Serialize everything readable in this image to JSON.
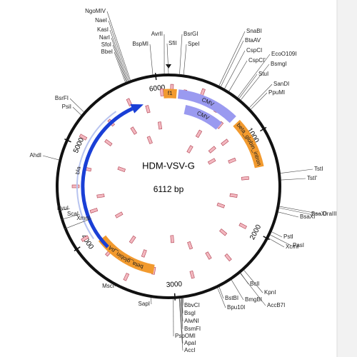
{
  "title": "HDM-VSV-G",
  "size_label": "6112 bp",
  "total_bp": 6112,
  "scale": [
    1000,
    2000,
    3000,
    4000,
    5000,
    6000
  ],
  "features": [
    {
      "label": "CMV"
    },
    {
      "label": "CMV"
    },
    {
      "label": "f1"
    },
    {
      "label": "beta_globin_intron"
    },
    {
      "label": "beta_globin_pA"
    },
    {
      "label": "bla"
    }
  ],
  "enzymes": [
    "NgoMIV",
    "NaeI",
    "KasI",
    "NarI",
    "SfoI",
    "BbeI",
    "BspMI",
    "AvrII",
    "SfiI",
    "BsrGI",
    "SpeI",
    "SnaBI",
    "BtaAV",
    "CspCI",
    "CspCI'",
    "EcoO109I",
    "BsmgI",
    "StuI",
    "SanDI",
    "PpuMI",
    "TstI",
    "TstI'",
    "DraIII",
    "BsaXI",
    "BsaXI'",
    "PstI",
    "XcmI",
    "PasI",
    "BclI",
    "KpnI",
    "AccB7I",
    "BmgBI",
    "BstBI",
    "Bpu10I",
    "BbvCI",
    "BsgI",
    "AlwNI",
    "BsmFI",
    "PspOMI",
    "ApaI",
    "AccI",
    "SapI",
    "MscI",
    "PvuI",
    "ScaI",
    "XmnI",
    "AhdI",
    "BsrFI",
    "PsiI"
  ]
}
